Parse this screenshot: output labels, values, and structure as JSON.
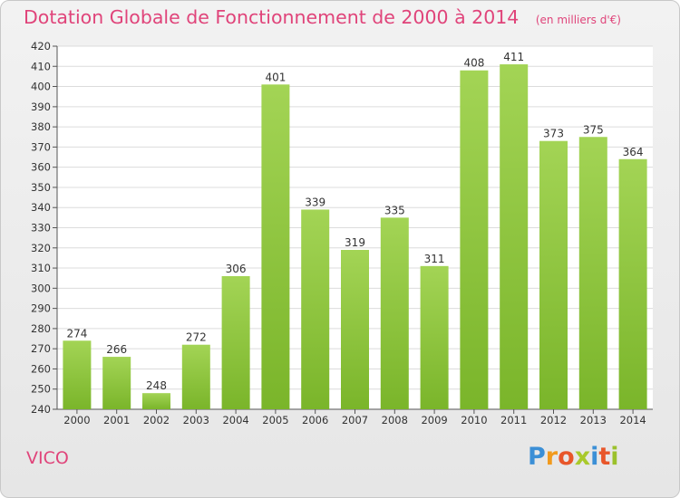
{
  "chart_data": {
    "type": "bar",
    "title": "Dotation Globale de Fonctionnement de 2000 à 2014",
    "subtitle": "(en milliers d'€)",
    "categories": [
      "2000",
      "2001",
      "2002",
      "2003",
      "2004",
      "2005",
      "2006",
      "2007",
      "2008",
      "2009",
      "2010",
      "2011",
      "2012",
      "2013",
      "2014"
    ],
    "values": [
      274,
      266,
      248,
      272,
      306,
      401,
      339,
      319,
      335,
      311,
      408,
      411,
      373,
      375,
      364
    ],
    "ylim": [
      240,
      420
    ],
    "yticks": [
      240,
      250,
      260,
      270,
      280,
      290,
      300,
      310,
      320,
      330,
      340,
      350,
      360,
      370,
      380,
      390,
      400,
      410,
      420
    ],
    "grid": true,
    "bar_color": "#7ab52a",
    "bar_color_light": "#a3d455"
  },
  "place": "VICO",
  "logo": {
    "letters": [
      "P",
      "r",
      "o",
      "x",
      "i",
      "t",
      "i"
    ],
    "colors": [
      "#3b8fd6",
      "#f19a1d",
      "#e8562a",
      "#a9c92b",
      "#3b8fd6",
      "#e8562a",
      "#9bc12c"
    ]
  },
  "colors": {
    "accent": "#e0447a"
  }
}
